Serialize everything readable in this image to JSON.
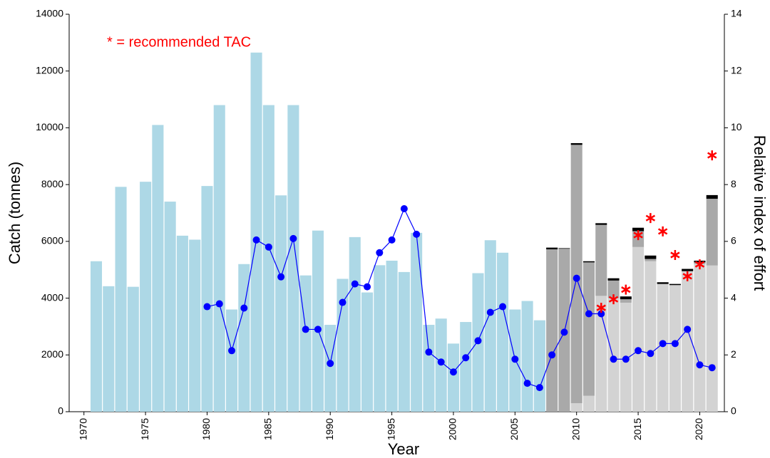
{
  "chart_data": {
    "type": "bar",
    "annotation": "* = recommended TAC",
    "annotation_color": "#ff0000",
    "xlabel": "Year",
    "ylabel": "Catch (tonnes)",
    "y2label": "Relative index of effort",
    "x": [
      1971,
      1972,
      1973,
      1974,
      1975,
      1976,
      1977,
      1978,
      1979,
      1980,
      1981,
      1982,
      1983,
      1984,
      1985,
      1986,
      1987,
      1988,
      1989,
      1990,
      1991,
      1992,
      1993,
      1994,
      1995,
      1996,
      1997,
      1998,
      1999,
      2000,
      2001,
      2002,
      2003,
      2004,
      2005,
      2006,
      2007,
      2008,
      2009,
      2010,
      2011,
      2012,
      2013,
      2014,
      2015,
      2016,
      2017,
      2018,
      2019,
      2020,
      2021
    ],
    "series": [
      {
        "type": "bar",
        "color": "#add8e6",
        "values": [
          5300,
          4420,
          7920,
          4400,
          8100,
          10100,
          7400,
          6200,
          6060,
          7950,
          10800,
          3600,
          5200,
          12650,
          10800,
          7620,
          10800,
          4800,
          6380,
          3060,
          4680,
          6150,
          4200,
          5160,
          5320,
          4920,
          6300,
          3060,
          3280,
          2400,
          3160,
          4880,
          6040,
          5600,
          3600,
          3900,
          3220,
          null,
          null,
          null,
          null,
          null,
          null,
          null,
          null,
          null,
          null,
          null,
          null,
          null,
          null
        ]
      },
      {
        "type": "bar",
        "color": "#d3d3d3",
        "values": [
          null,
          null,
          null,
          null,
          null,
          null,
          null,
          null,
          null,
          null,
          null,
          null,
          null,
          null,
          null,
          null,
          null,
          null,
          null,
          null,
          null,
          null,
          null,
          null,
          null,
          null,
          null,
          null,
          null,
          null,
          null,
          null,
          null,
          null,
          null,
          null,
          null,
          0,
          0,
          300,
          560,
          4080,
          4000,
          3840,
          5800,
          5300,
          4500,
          4460,
          4950,
          5200,
          5150
        ]
      },
      {
        "type": "bar",
        "color": "#a9a9a9",
        "values": [
          null,
          null,
          null,
          null,
          null,
          null,
          null,
          null,
          null,
          null,
          null,
          null,
          null,
          null,
          null,
          null,
          null,
          null,
          null,
          null,
          null,
          null,
          null,
          null,
          null,
          null,
          null,
          null,
          null,
          null,
          null,
          null,
          null,
          null,
          null,
          null,
          null,
          5720,
          5740,
          9100,
          4700,
          2500,
          620,
          120,
          560,
          80,
          0,
          0,
          0,
          60,
          2350
        ]
      },
      {
        "type": "bar",
        "color": "#000000",
        "values": [
          null,
          null,
          null,
          null,
          null,
          null,
          null,
          null,
          null,
          null,
          null,
          null,
          null,
          null,
          null,
          null,
          null,
          null,
          null,
          null,
          null,
          null,
          null,
          null,
          null,
          null,
          null,
          null,
          null,
          null,
          null,
          null,
          null,
          null,
          null,
          null,
          null,
          60,
          20,
          60,
          40,
          60,
          80,
          100,
          120,
          120,
          60,
          40,
          80,
          60,
          130
        ]
      },
      {
        "type": "line",
        "axis": "y2",
        "color": "#0000ff",
        "values": [
          null,
          null,
          null,
          null,
          null,
          null,
          null,
          null,
          null,
          3.7,
          3.8,
          2.15,
          3.65,
          6.05,
          5.8,
          4.75,
          6.1,
          2.9,
          2.9,
          1.7,
          3.85,
          4.5,
          4.4,
          5.6,
          6.05,
          7.15,
          6.25,
          2.1,
          1.75,
          1.4,
          1.9,
          2.5,
          3.5,
          3.7,
          1.85,
          1.0,
          0.85,
          2.0,
          2.8,
          4.7,
          3.45,
          3.45,
          1.85,
          1.85,
          2.15,
          2.05,
          2.4,
          2.4,
          2.9,
          1.65,
          1.55
        ]
      },
      {
        "type": "scatter",
        "color": "#ff0000",
        "values": [
          null,
          null,
          null,
          null,
          null,
          null,
          null,
          null,
          null,
          null,
          null,
          null,
          null,
          null,
          null,
          null,
          null,
          null,
          null,
          null,
          null,
          null,
          null,
          null,
          null,
          null,
          null,
          null,
          null,
          null,
          null,
          null,
          null,
          null,
          null,
          null,
          null,
          null,
          null,
          null,
          null,
          3660,
          3960,
          4300,
          6220,
          6820,
          6350,
          5520,
          4770,
          5190,
          9030
        ]
      }
    ],
    "xlim": [
      1968.8,
      2022.0
    ],
    "xticks": [
      1970,
      1975,
      1980,
      1985,
      1990,
      1995,
      2000,
      2005,
      2010,
      2015,
      2020
    ],
    "ylim": [
      0,
      14000
    ],
    "yticks": [
      0,
      2000,
      4000,
      6000,
      8000,
      10000,
      12000,
      14000
    ],
    "y2lim": [
      0,
      14
    ],
    "y2ticks": [
      0,
      2,
      4,
      6,
      8,
      10,
      12,
      14
    ]
  }
}
